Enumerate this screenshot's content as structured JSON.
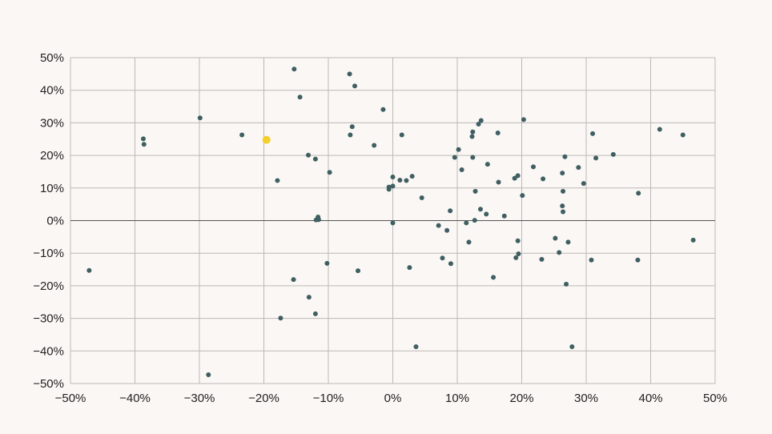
{
  "chart_data": {
    "type": "scatter",
    "title": "",
    "xlabel": "",
    "ylabel": "",
    "xlim": [
      -50,
      50
    ],
    "ylim": [
      -50,
      50
    ],
    "xticks": [
      -50,
      -40,
      -30,
      -20,
      -10,
      0,
      10,
      20,
      30,
      40,
      50
    ],
    "yticks": [
      -50,
      -40,
      -30,
      -20,
      -10,
      0,
      10,
      20,
      30,
      40,
      50
    ],
    "xtick_labels": [
      "−50%",
      "−40%",
      "−30%",
      "−20%",
      "−10%",
      "0%",
      "10%",
      "20%",
      "30%",
      "40%",
      "50%"
    ],
    "ytick_labels": [
      "−50%",
      "−40%",
      "−30%",
      "−20%",
      "−10%",
      "0%",
      "10%",
      "20%",
      "30%",
      "40%",
      "50%"
    ],
    "grid": true,
    "colors": {
      "point": "#3f5f62",
      "highlight": "#f4cf2a",
      "grid": "#bdb8b6",
      "zero_line": "#555555",
      "background": "#fbf7f4"
    },
    "series": [
      {
        "points": [
          {
            "x": -47.1,
            "y": -15.3
          },
          {
            "x": -38.7,
            "y": 25.1
          },
          {
            "x": -38.6,
            "y": 23.4
          },
          {
            "x": -29.9,
            "y": 31.5
          },
          {
            "x": -28.6,
            "y": -47.3
          },
          {
            "x": -23.4,
            "y": 26.3
          },
          {
            "x": -17.9,
            "y": 12.3
          },
          {
            "x": -17.4,
            "y": -29.9
          },
          {
            "x": -15.3,
            "y": 46.5
          },
          {
            "x": -15.4,
            "y": -18.1
          },
          {
            "x": -14.4,
            "y": 37.9
          },
          {
            "x": -13.1,
            "y": 20.1
          },
          {
            "x": -13.0,
            "y": -23.5
          },
          {
            "x": -12.0,
            "y": 18.9
          },
          {
            "x": -12.0,
            "y": -28.6
          },
          {
            "x": -11.9,
            "y": 0.2
          },
          {
            "x": -11.6,
            "y": 1.1
          },
          {
            "x": -11.5,
            "y": 0.3
          },
          {
            "x": -10.2,
            "y": -13.1
          },
          {
            "x": -9.8,
            "y": 14.8
          },
          {
            "x": -6.7,
            "y": 45.0
          },
          {
            "x": -6.6,
            "y": 26.3
          },
          {
            "x": -6.3,
            "y": 28.8
          },
          {
            "x": -5.9,
            "y": 41.3
          },
          {
            "x": -5.4,
            "y": -15.4
          },
          {
            "x": -2.9,
            "y": 23.1
          },
          {
            "x": -1.5,
            "y": 34.1
          },
          {
            "x": -0.6,
            "y": 9.6
          },
          {
            "x": -0.6,
            "y": 10.3
          },
          {
            "x": 0.0,
            "y": 10.6
          },
          {
            "x": 0.0,
            "y": 13.4
          },
          {
            "x": 0.0,
            "y": -0.7
          },
          {
            "x": 1.1,
            "y": 12.4
          },
          {
            "x": 1.4,
            "y": 26.3
          },
          {
            "x": 2.1,
            "y": 12.3
          },
          {
            "x": 2.6,
            "y": -14.4
          },
          {
            "x": 3.0,
            "y": 13.6
          },
          {
            "x": 3.6,
            "y": -38.7
          },
          {
            "x": 4.5,
            "y": 7.0
          },
          {
            "x": 7.1,
            "y": -1.5
          },
          {
            "x": 7.7,
            "y": -11.5
          },
          {
            "x": 8.4,
            "y": -3.0
          },
          {
            "x": 8.9,
            "y": 3.0
          },
          {
            "x": 9.0,
            "y": -13.2
          },
          {
            "x": 9.6,
            "y": 19.4
          },
          {
            "x": 10.2,
            "y": 21.8
          },
          {
            "x": 10.7,
            "y": 15.6
          },
          {
            "x": 11.4,
            "y": -0.7
          },
          {
            "x": 11.8,
            "y": -6.6
          },
          {
            "x": 12.3,
            "y": 25.8
          },
          {
            "x": 12.4,
            "y": 27.2
          },
          {
            "x": 12.4,
            "y": 19.4
          },
          {
            "x": 12.7,
            "y": 0.1
          },
          {
            "x": 12.8,
            "y": 9.0
          },
          {
            "x": 13.3,
            "y": 29.6
          },
          {
            "x": 13.6,
            "y": 3.5
          },
          {
            "x": 13.7,
            "y": 30.7
          },
          {
            "x": 14.5,
            "y": 2.0
          },
          {
            "x": 14.7,
            "y": 17.3
          },
          {
            "x": 15.6,
            "y": -17.4
          },
          {
            "x": 16.3,
            "y": 26.9
          },
          {
            "x": 16.4,
            "y": 11.8
          },
          {
            "x": 17.3,
            "y": 1.4
          },
          {
            "x": 18.9,
            "y": 13.0
          },
          {
            "x": 19.1,
            "y": -11.4
          },
          {
            "x": 19.4,
            "y": -6.2
          },
          {
            "x": 19.4,
            "y": 13.8
          },
          {
            "x": 19.5,
            "y": -10.2
          },
          {
            "x": 20.1,
            "y": 7.7
          },
          {
            "x": 20.3,
            "y": 31.0
          },
          {
            "x": 21.8,
            "y": 16.5
          },
          {
            "x": 23.1,
            "y": -11.9
          },
          {
            "x": 23.3,
            "y": 12.8
          },
          {
            "x": 25.2,
            "y": -5.4
          },
          {
            "x": 25.8,
            "y": -9.8
          },
          {
            "x": 26.3,
            "y": 14.6
          },
          {
            "x": 26.3,
            "y": 4.5
          },
          {
            "x": 26.4,
            "y": 2.7
          },
          {
            "x": 26.4,
            "y": 9.0
          },
          {
            "x": 26.7,
            "y": 19.6
          },
          {
            "x": 26.9,
            "y": -19.5
          },
          {
            "x": 27.2,
            "y": -6.6
          },
          {
            "x": 27.8,
            "y": -38.7
          },
          {
            "x": 28.8,
            "y": 16.3
          },
          {
            "x": 29.6,
            "y": 11.4
          },
          {
            "x": 30.8,
            "y": -12.1
          },
          {
            "x": 31.0,
            "y": 26.7
          },
          {
            "x": 31.5,
            "y": 19.2
          },
          {
            "x": 34.2,
            "y": 20.3
          },
          {
            "x": 38.0,
            "y": -12.1
          },
          {
            "x": 38.1,
            "y": 8.4
          },
          {
            "x": 41.4,
            "y": 28.0
          },
          {
            "x": 45.0,
            "y": 26.3
          },
          {
            "x": 46.6,
            "y": -6.0
          }
        ]
      },
      {
        "highlighted": true,
        "points": [
          {
            "x": -19.6,
            "y": 24.8
          }
        ]
      }
    ]
  }
}
